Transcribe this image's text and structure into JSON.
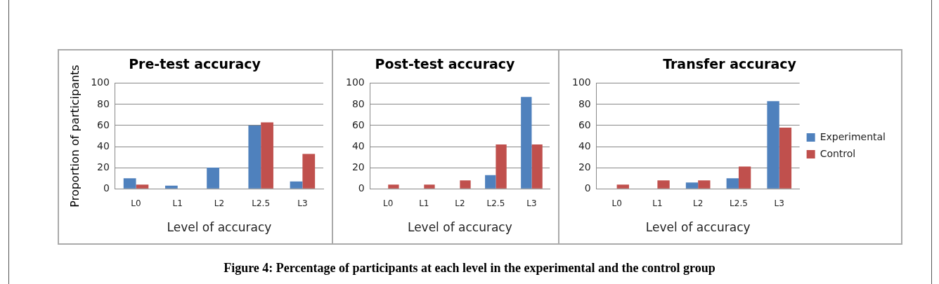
{
  "chart_data": [
    {
      "type": "bar",
      "title": "Pre-test accuracy",
      "xlabel": "Level of accuracy",
      "ylabel": "Proportion of participants",
      "categories": [
        "L0",
        "L1",
        "L2",
        "L2.5",
        "L3"
      ],
      "series": [
        {
          "color": "#4f81bd",
          "values": [
            10,
            3,
            20,
            60,
            7
          ]
        },
        {
          "color": "#c0504d",
          "values": [
            4,
            0,
            0,
            63,
            33
          ]
        }
      ],
      "ylim": [
        0,
        100
      ],
      "yticks": [
        0,
        20,
        40,
        60,
        80,
        100
      ],
      "grid": "y",
      "legend": false,
      "annotations": [
        "Figure 4: Percentage of participants at each level in the experimental and the control group"
      ]
    },
    {
      "type": "bar",
      "title": "Post-test accuracy",
      "xlabel": "Level of accuracy",
      "categories": [
        "L0",
        "L1",
        "L2",
        "L2.5",
        "L3"
      ],
      "series": [
        {
          "color": "#4f81bd",
          "values": [
            0,
            0,
            0,
            13,
            87
          ]
        },
        {
          "color": "#c0504d",
          "values": [
            4,
            4,
            8,
            42,
            42
          ]
        }
      ],
      "ylim": [
        0,
        100
      ],
      "yticks": [
        0,
        20,
        40,
        60,
        80,
        100
      ],
      "grid": "y",
      "legend": false
    },
    {
      "type": "bar",
      "title": "Transfer accuracy",
      "xlabel": "Level of accuracy",
      "categories": [
        "L0",
        "L1",
        "L2",
        "L2.5",
        "L3"
      ],
      "series": [
        {
          "name": "Experimental",
          "color": "#4f81bd",
          "values": [
            0,
            0,
            6,
            10,
            83
          ]
        },
        {
          "name": "Control",
          "color": "#c0504d",
          "values": [
            4,
            8,
            8,
            21,
            58
          ]
        }
      ],
      "ylim": [
        0,
        100
      ],
      "yticks": [
        0,
        20,
        40,
        60,
        80,
        100
      ],
      "grid": "y",
      "legend": "right"
    }
  ]
}
